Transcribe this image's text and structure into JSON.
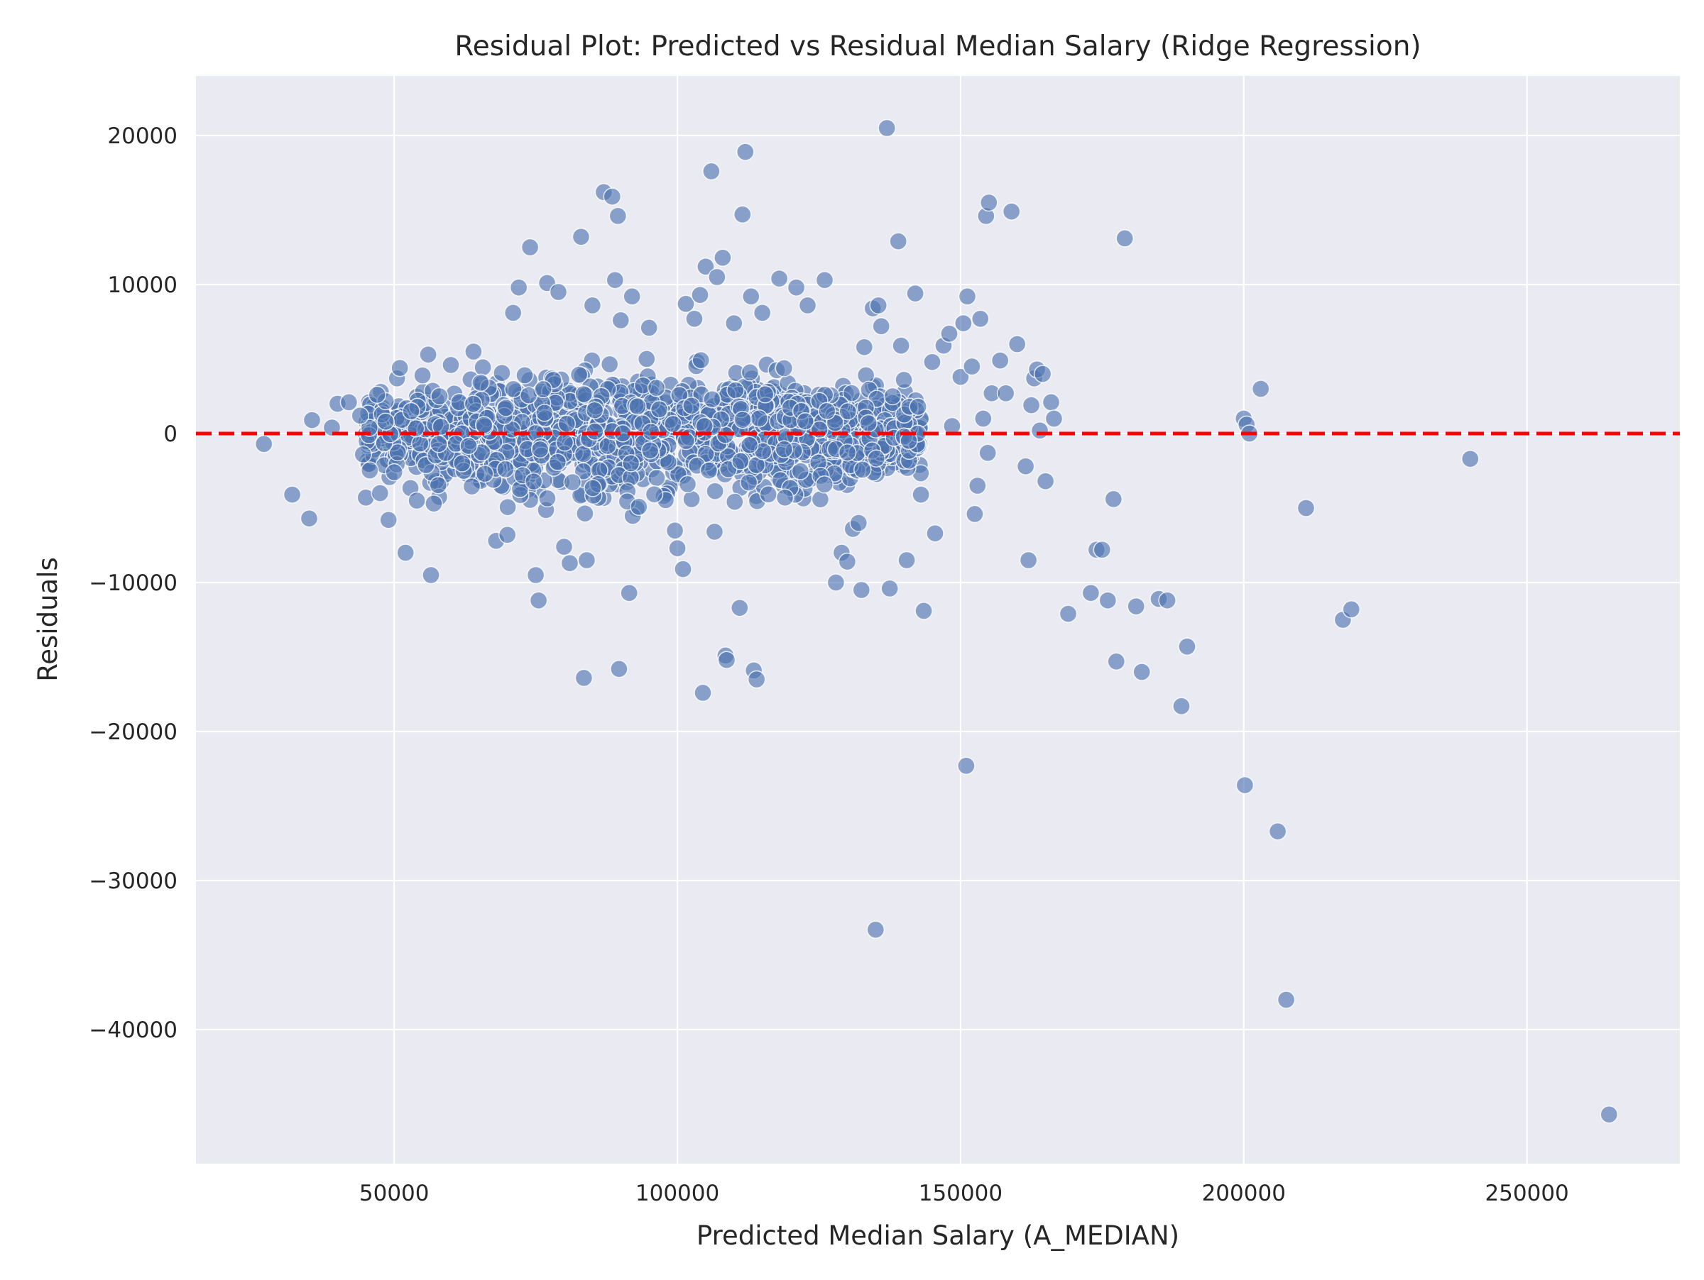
{
  "chart_data": {
    "type": "scatter",
    "title": "Residual Plot: Predicted vs Residual Median Salary (Ridge Regression)",
    "xlabel": "Predicted Median Salary (A_MEDIAN)",
    "ylabel": "Residuals",
    "xlim": [
      15000,
      277000
    ],
    "ylim": [
      -49000,
      24000
    ],
    "xticks": [
      50000,
      100000,
      150000,
      200000,
      250000
    ],
    "yticks": [
      -40000,
      -30000,
      -20000,
      -10000,
      0,
      10000,
      20000
    ],
    "xtick_labels": [
      "50000",
      "100000",
      "150000",
      "200000",
      "250000"
    ],
    "ytick_labels": [
      "−40000",
      "−30000",
      "−20000",
      "−10000",
      "0",
      "10000",
      "20000"
    ],
    "grid": true,
    "reference_line": {
      "y": 0,
      "color": "#ff0000",
      "style": "dashed"
    },
    "colors": {
      "background": "#eaeaf2",
      "grid": "#ffffff",
      "points": "#4c72b0",
      "point_edge": "#ffffff",
      "refline": "#ff0000"
    },
    "cluster": {
      "description_count": 1500,
      "x_range": [
        45000,
        143000
      ],
      "y_spread": 5500
    },
    "points": [
      [
        27000,
        -700
      ],
      [
        32000,
        -4100
      ],
      [
        35000,
        -5700
      ],
      [
        35500,
        900
      ],
      [
        39000,
        400
      ],
      [
        40000,
        2000
      ],
      [
        42000,
        2100
      ],
      [
        44000,
        1200
      ],
      [
        44500,
        -1400
      ],
      [
        45000,
        -4300
      ],
      [
        47000,
        2600
      ],
      [
        47500,
        -4000
      ],
      [
        48500,
        800
      ],
      [
        49000,
        -5800
      ],
      [
        50000,
        -2600
      ],
      [
        50500,
        3700
      ],
      [
        51000,
        4400
      ],
      [
        52000,
        -8000
      ],
      [
        53000,
        1500
      ],
      [
        54000,
        -4500
      ],
      [
        55000,
        3900
      ],
      [
        56000,
        5300
      ],
      [
        56500,
        -9500
      ],
      [
        57000,
        -4700
      ],
      [
        58000,
        2500
      ],
      [
        60000,
        4600
      ],
      [
        62000,
        -2000
      ],
      [
        64000,
        5500
      ],
      [
        66000,
        -2700
      ],
      [
        68000,
        -7200
      ],
      [
        70000,
        -6800
      ],
      [
        71000,
        8100
      ],
      [
        72000,
        9800
      ],
      [
        74000,
        12500
      ],
      [
        75000,
        -9500
      ],
      [
        75500,
        -11200
      ],
      [
        77000,
        10100
      ],
      [
        79000,
        9500
      ],
      [
        80000,
        -7600
      ],
      [
        81000,
        -8700
      ],
      [
        83000,
        13200
      ],
      [
        83500,
        -16400
      ],
      [
        84000,
        -8500
      ],
      [
        85000,
        8600
      ],
      [
        87000,
        16200
      ],
      [
        88500,
        15900
      ],
      [
        89000,
        10300
      ],
      [
        89500,
        14600
      ],
      [
        89700,
        -15800
      ],
      [
        90000,
        7600
      ],
      [
        91500,
        -10700
      ],
      [
        92000,
        9200
      ],
      [
        95000,
        7100
      ],
      [
        100000,
        -7700
      ],
      [
        101000,
        -9100
      ],
      [
        101500,
        8700
      ],
      [
        103000,
        7700
      ],
      [
        104000,
        9300
      ],
      [
        104500,
        -17400
      ],
      [
        105000,
        11200
      ],
      [
        106000,
        17600
      ],
      [
        107000,
        10500
      ],
      [
        108000,
        11800
      ],
      [
        108500,
        -14900
      ],
      [
        108700,
        -15200
      ],
      [
        110000,
        7400
      ],
      [
        111000,
        -11700
      ],
      [
        111500,
        14700
      ],
      [
        112000,
        18900
      ],
      [
        113000,
        9200
      ],
      [
        113500,
        -15900
      ],
      [
        114000,
        -16500
      ],
      [
        115000,
        8100
      ],
      [
        118000,
        10400
      ],
      [
        119000,
        -4300
      ],
      [
        121000,
        9800
      ],
      [
        123000,
        8600
      ],
      [
        126000,
        10300
      ],
      [
        128000,
        -10000
      ],
      [
        129000,
        -8000
      ],
      [
        130000,
        -8600
      ],
      [
        131000,
        -6400
      ],
      [
        132000,
        -6000
      ],
      [
        132500,
        -10500
      ],
      [
        133000,
        5800
      ],
      [
        134500,
        8400
      ],
      [
        135000,
        -33300
      ],
      [
        135500,
        8600
      ],
      [
        136000,
        7200
      ],
      [
        137000,
        20500
      ],
      [
        137500,
        -10400
      ],
      [
        138000,
        2500
      ],
      [
        139000,
        12900
      ],
      [
        139500,
        5900
      ],
      [
        140000,
        3600
      ],
      [
        140500,
        -8500
      ],
      [
        141000,
        1800
      ],
      [
        142000,
        9400
      ],
      [
        142500,
        1800
      ],
      [
        143000,
        -4100
      ],
      [
        143500,
        -11900
      ],
      [
        145000,
        4800
      ],
      [
        145500,
        -6700
      ],
      [
        147000,
        5900
      ],
      [
        148000,
        6700
      ],
      [
        148500,
        500
      ],
      [
        150000,
        3800
      ],
      [
        150500,
        7400
      ],
      [
        151000,
        -22300
      ],
      [
        151200,
        9200
      ],
      [
        152000,
        4500
      ],
      [
        152500,
        -5400
      ],
      [
        153000,
        -3500
      ],
      [
        153500,
        7700
      ],
      [
        154000,
        1000
      ],
      [
        154500,
        14600
      ],
      [
        154800,
        -1300
      ],
      [
        155000,
        15500
      ],
      [
        155500,
        2700
      ],
      [
        157000,
        4900
      ],
      [
        158000,
        2700
      ],
      [
        159000,
        14900
      ],
      [
        160000,
        6000
      ],
      [
        161500,
        -2200
      ],
      [
        162000,
        -8500
      ],
      [
        162500,
        1900
      ],
      [
        163000,
        3700
      ],
      [
        163500,
        4300
      ],
      [
        164000,
        200
      ],
      [
        164500,
        4000
      ],
      [
        165000,
        -3200
      ],
      [
        166000,
        2100
      ],
      [
        166500,
        1000
      ],
      [
        169000,
        -12100
      ],
      [
        173000,
        -10700
      ],
      [
        174000,
        -7800
      ],
      [
        175000,
        -7800
      ],
      [
        176000,
        -11200
      ],
      [
        177000,
        -4400
      ],
      [
        177500,
        -15300
      ],
      [
        179000,
        13100
      ],
      [
        181000,
        -11600
      ],
      [
        182000,
        -16000
      ],
      [
        185000,
        -11100
      ],
      [
        186500,
        -11200
      ],
      [
        189000,
        -18300
      ],
      [
        190000,
        -14300
      ],
      [
        200000,
        1000
      ],
      [
        200500,
        600
      ],
      [
        201000,
        0
      ],
      [
        200200,
        -23600
      ],
      [
        203000,
        3000
      ],
      [
        206000,
        -26700
      ],
      [
        207500,
        -38000
      ],
      [
        211000,
        -5000
      ],
      [
        217500,
        -12500
      ],
      [
        219000,
        -11800
      ],
      [
        240000,
        -1700
      ],
      [
        264500,
        -45700
      ]
    ]
  }
}
